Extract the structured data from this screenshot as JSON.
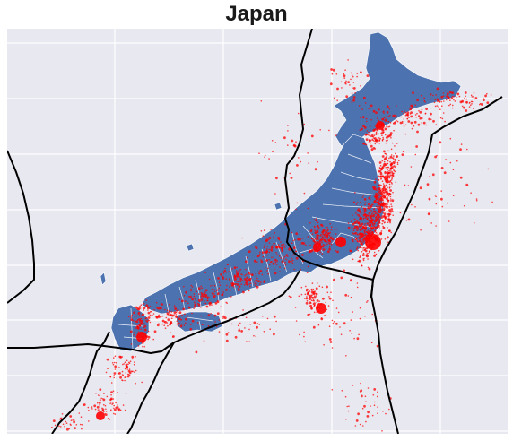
{
  "map": {
    "title": "Japan",
    "colors": {
      "background": "#e8e8f0",
      "grid": "#ffffff",
      "land": "#4c72b0",
      "prefecture_border": "#ffffff",
      "plate_boundary": "#000000",
      "earthquake": "#ff0000"
    },
    "layers": [
      "plate-boundaries",
      "prefectures",
      "earthquake-epicenters"
    ]
  }
}
